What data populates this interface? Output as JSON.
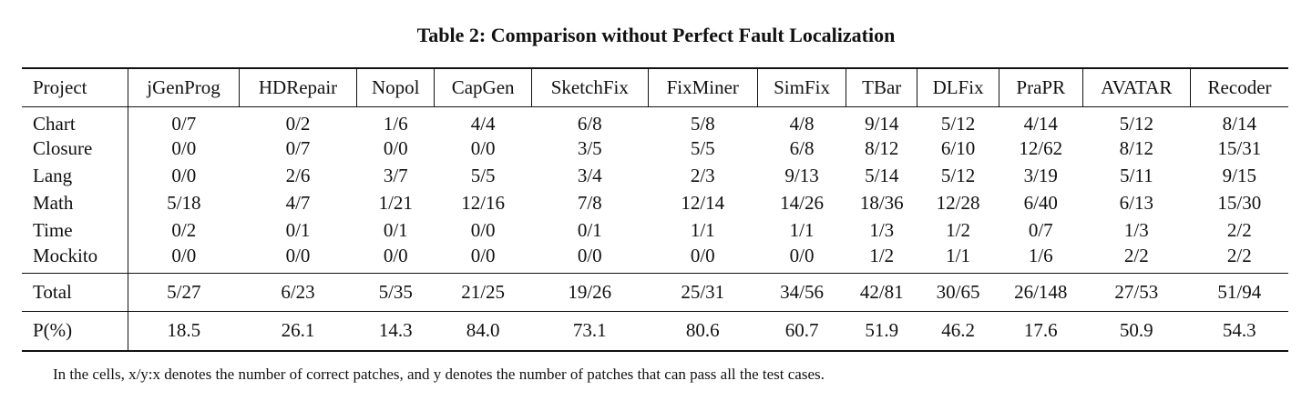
{
  "caption": "Table 2: Comparison without Perfect Fault Localization",
  "header": [
    "Project",
    "jGenProg",
    "HDRepair",
    "Nopol",
    "CapGen",
    "SketchFix",
    "FixMiner",
    "SimFix",
    "TBar",
    "DLFix",
    "PraPR",
    "AVATAR",
    "Recoder"
  ],
  "rows": [
    {
      "project": "Chart",
      "cells": [
        "0/7",
        "0/2",
        "1/6",
        "4/4",
        "6/8",
        "5/8",
        "4/8",
        "9/14",
        "5/12",
        "4/14",
        "5/12",
        "8/14"
      ],
      "bold": [
        7
      ]
    },
    {
      "project": "Closure",
      "cells": [
        "0/0",
        "0/7",
        "0/0",
        "0/0",
        "3/5",
        "5/5",
        "6/8",
        "8/12",
        "6/10",
        "12/62",
        "8/12",
        "15/31"
      ],
      "bold": [
        11
      ]
    },
    {
      "project": "Lang",
      "cells": [
        "0/0",
        "2/6",
        "3/7",
        "5/5",
        "3/4",
        "2/3",
        "9/13",
        "5/14",
        "5/12",
        "3/19",
        "5/11",
        "9/15"
      ],
      "bold": [
        6,
        11
      ]
    },
    {
      "project": "Math",
      "cells": [
        "5/18",
        "4/7",
        "1/21",
        "12/16",
        "7/8",
        "12/14",
        "14/26",
        "18/36",
        "12/28",
        "6/40",
        "6/13",
        "15/30"
      ],
      "bold": [
        7
      ]
    },
    {
      "project": "Time",
      "cells": [
        "0/2",
        "0/1",
        "0/1",
        "0/0",
        "0/1",
        "1/1",
        "1/1",
        "1/3",
        "1/2",
        "0/7",
        "1/3",
        "2/2"
      ],
      "bold": [
        11
      ]
    },
    {
      "project": "Mockito",
      "cells": [
        "0/0",
        "0/0",
        "0/0",
        "0/0",
        "0/0",
        "0/0",
        "0/0",
        "1/2",
        "1/1",
        "1/6",
        "2/2",
        "2/2"
      ],
      "bold": [
        10,
        11
      ]
    }
  ],
  "total": {
    "project": "Total",
    "cells": [
      "5/27",
      "6/23",
      "5/35",
      "21/25",
      "19/26",
      "25/31",
      "34/56",
      "42/81",
      "30/65",
      "26/148",
      "27/53",
      "51/94"
    ],
    "bold": [
      11
    ]
  },
  "precision": {
    "project": "P(%)",
    "cells": [
      "18.5",
      "26.1",
      "14.3",
      "84.0",
      "73.1",
      "80.6",
      "60.7",
      "51.9",
      "46.2",
      "17.6",
      "50.9",
      "54.3"
    ],
    "bold": [
      3
    ]
  },
  "note": "In the cells, x/y:x denotes the number of correct patches, and y denotes the number of patches that can pass all the test cases."
}
